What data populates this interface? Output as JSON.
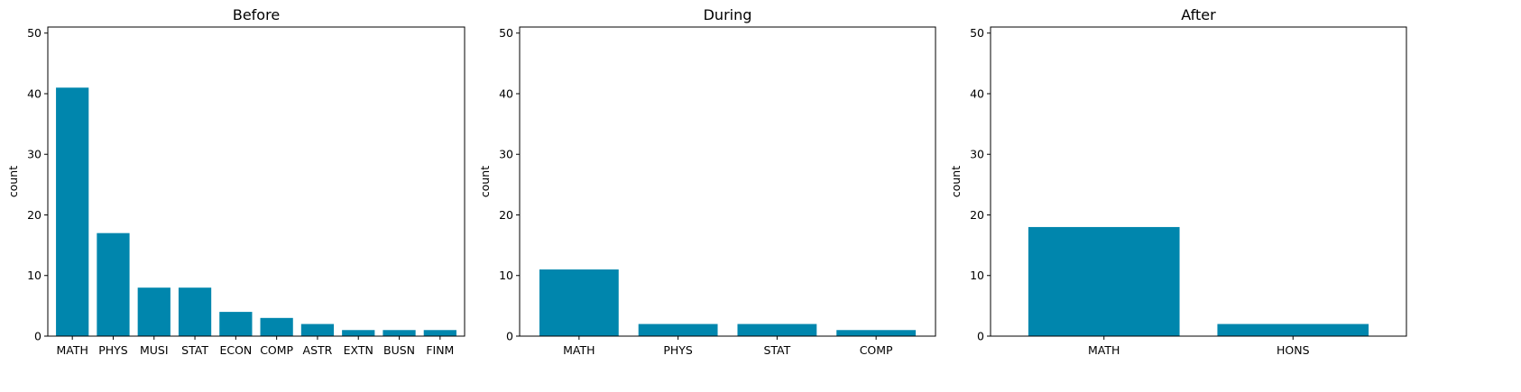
{
  "colors": {
    "bar": "#0086ad",
    "axis": "#000000",
    "background": "#ffffff"
  },
  "chart_data": [
    {
      "type": "bar",
      "title": "Before",
      "xlabel": "",
      "ylabel": "count",
      "ylim": [
        0,
        51
      ],
      "yticks": [
        0,
        10,
        20,
        30,
        40,
        50
      ],
      "grid": false,
      "categories": [
        "MATH",
        "PHYS",
        "MUSI",
        "STAT",
        "ECON",
        "COMP",
        "ASTR",
        "EXTN",
        "BUSN",
        "FINM"
      ],
      "values": [
        41,
        17,
        8,
        8,
        4,
        3,
        2,
        1,
        1,
        1
      ]
    },
    {
      "type": "bar",
      "title": "During",
      "xlabel": "",
      "ylabel": "count",
      "ylim": [
        0,
        51
      ],
      "yticks": [
        0,
        10,
        20,
        30,
        40,
        50
      ],
      "grid": false,
      "categories": [
        "MATH",
        "PHYS",
        "STAT",
        "COMP"
      ],
      "values": [
        11,
        2,
        2,
        1
      ]
    },
    {
      "type": "bar",
      "title": "After",
      "xlabel": "",
      "ylabel": "count",
      "ylim": [
        0,
        51
      ],
      "yticks": [
        0,
        10,
        20,
        30,
        40,
        50
      ],
      "grid": false,
      "categories": [
        "MATH",
        "HONS"
      ],
      "values": [
        18,
        2
      ]
    }
  ]
}
